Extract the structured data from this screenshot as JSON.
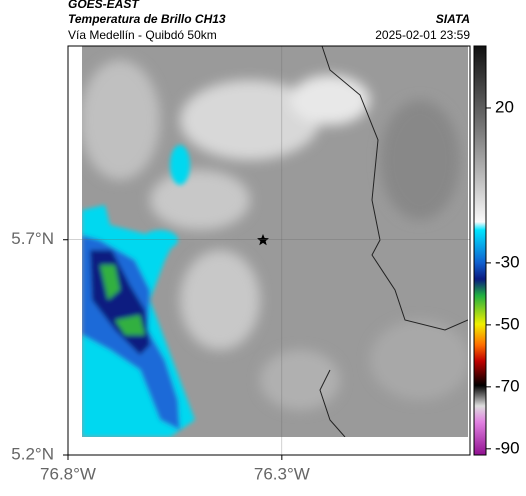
{
  "header": {
    "title": "GOES-EAST",
    "subtitle": "Temperatura de Brillo CH13",
    "location": "Vía Medellín - Quibdó 50km",
    "source": "SIATA",
    "datetime": "2025-02-01 23:59"
  },
  "map": {
    "xlim": [
      -76.8,
      -75.86
    ],
    "ylim": [
      5.2,
      6.15
    ],
    "xticks": [
      {
        "value": -76.8,
        "label": "76.8°W"
      },
      {
        "value": -76.3,
        "label": "76.3°W"
      }
    ],
    "yticks": [
      {
        "value": 5.7,
        "label": "5.7°N"
      },
      {
        "value": 5.2,
        "label": "5.2°N"
      }
    ],
    "grid": true
  },
  "colorbar": {
    "lim": [
      -92,
      40
    ],
    "ticks": [
      20,
      -30,
      -50,
      -70,
      -90
    ]
  }
}
